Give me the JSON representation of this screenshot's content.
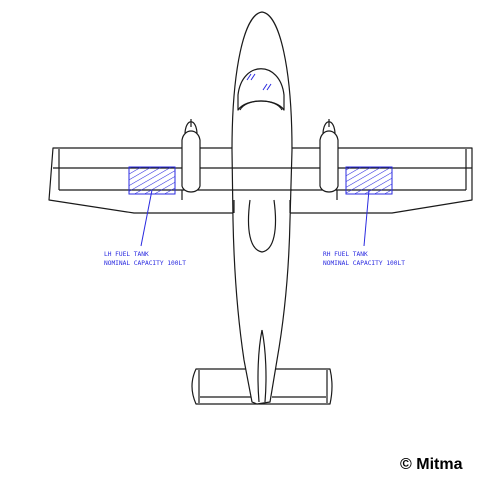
{
  "diagram": {
    "labels": {
      "lh_tank_title": "LH FUEL TANK",
      "lh_tank_capacity": "NOMINAL CAPACITY 100LT",
      "rh_tank_title": "RH FUEL TANK",
      "rh_tank_capacity": "NOMINAL CAPACITY 100LT"
    },
    "copyright": "© Mitma",
    "colors": {
      "outline": "#1a1a1a",
      "fuel_tank": "#2a2ae0",
      "background": "#ffffff"
    }
  }
}
